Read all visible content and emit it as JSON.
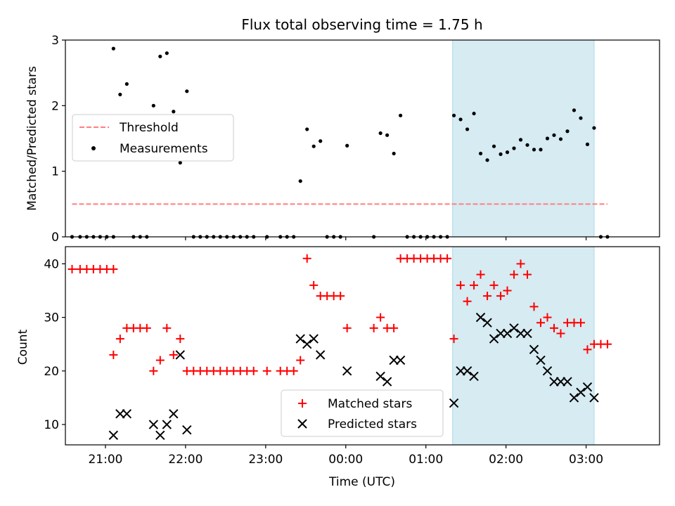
{
  "title": "Flux total observing time = 1.75 h",
  "xlabel": "Time (UTC)",
  "x_tick_labels": [
    "21:00",
    "22:00",
    "23:00",
    "00:00",
    "01:00",
    "02:00",
    "03:00"
  ],
  "highlight_color": "#add8e6",
  "chart_data": [
    {
      "type": "scatter",
      "panel": "top",
      "ylabel": "Matched/Predicted stars",
      "ylim": [
        0,
        3
      ],
      "yticks": [
        0,
        1,
        2,
        3
      ],
      "xlim": [
        "20:30",
        "03:55"
      ],
      "shaded_region": [
        "01:20",
        "03:06"
      ],
      "legend_position": "center-left",
      "series": [
        {
          "name": "Threshold",
          "kind": "line",
          "style": "dashed",
          "color": "#ff7f7f",
          "points": [
            [
              "20:35",
              0.5
            ],
            [
              "03:16",
              0.5
            ]
          ]
        },
        {
          "name": "Measurements",
          "kind": "points",
          "color": "#000000",
          "points": [
            [
              "20:35",
              0
            ],
            [
              "20:41",
              0
            ],
            [
              "20:46",
              0
            ],
            [
              "20:51",
              0
            ],
            [
              "20:56",
              0
            ],
            [
              "21:01",
              0
            ],
            [
              "21:06",
              0
            ],
            [
              "21:06",
              2.87
            ],
            [
              "21:11",
              2.17
            ],
            [
              "21:16",
              2.33
            ],
            [
              "21:21",
              0
            ],
            [
              "21:26",
              0
            ],
            [
              "21:31",
              0
            ],
            [
              "21:36",
              2.0
            ],
            [
              "21:41",
              2.75
            ],
            [
              "21:46",
              2.8
            ],
            [
              "21:51",
              1.91
            ],
            [
              "21:56",
              1.13
            ],
            [
              "22:01",
              2.22
            ],
            [
              "22:06",
              0
            ],
            [
              "22:11",
              0
            ],
            [
              "22:16",
              0
            ],
            [
              "22:21",
              0
            ],
            [
              "22:26",
              0
            ],
            [
              "22:31",
              0
            ],
            [
              "22:36",
              0
            ],
            [
              "22:41",
              0
            ],
            [
              "22:46",
              0
            ],
            [
              "22:51",
              0
            ],
            [
              "23:01",
              0
            ],
            [
              "23:11",
              0
            ],
            [
              "23:16",
              0
            ],
            [
              "23:21",
              0
            ],
            [
              "23:26",
              0.85
            ],
            [
              "23:31",
              1.64
            ],
            [
              "23:36",
              1.38
            ],
            [
              "23:41",
              1.46
            ],
            [
              "23:46",
              0
            ],
            [
              "23:51",
              0
            ],
            [
              "23:56",
              0
            ],
            [
              "24:01",
              1.39
            ],
            [
              "24:21",
              0
            ],
            [
              "24:26",
              1.58
            ],
            [
              "24:31",
              1.55
            ],
            [
              "24:36",
              1.27
            ],
            [
              "24:41",
              1.85
            ],
            [
              "24:46",
              0
            ],
            [
              "24:51",
              0
            ],
            [
              "24:56",
              0
            ],
            [
              "25:01",
              0
            ],
            [
              "25:06",
              0
            ],
            [
              "25:11",
              0
            ],
            [
              "25:16",
              0
            ],
            [
              "25:21",
              1.85
            ],
            [
              "25:26",
              1.79
            ],
            [
              "25:31",
              1.64
            ],
            [
              "25:36",
              1.88
            ],
            [
              "25:41",
              1.27
            ],
            [
              "25:46",
              1.17
            ],
            [
              "25:51",
              1.38
            ],
            [
              "25:56",
              1.26
            ],
            [
              "26:01",
              1.29
            ],
            [
              "26:06",
              1.35
            ],
            [
              "26:11",
              1.48
            ],
            [
              "26:16",
              1.4
            ],
            [
              "26:21",
              1.33
            ],
            [
              "26:26",
              1.33
            ],
            [
              "26:31",
              1.5
            ],
            [
              "26:36",
              1.55
            ],
            [
              "26:41",
              1.49
            ],
            [
              "26:46",
              1.61
            ],
            [
              "26:51",
              1.93
            ],
            [
              "26:56",
              1.81
            ],
            [
              "27:01",
              1.41
            ],
            [
              "27:06",
              1.66
            ],
            [
              "27:11",
              0
            ],
            [
              "27:16",
              0
            ]
          ]
        }
      ]
    },
    {
      "type": "scatter",
      "panel": "bottom",
      "ylabel": "Count",
      "ylim": [
        6.2,
        43.2
      ],
      "yticks": [
        10,
        20,
        30,
        40
      ],
      "xlim": [
        "20:30",
        "03:55"
      ],
      "shaded_region": [
        "01:20",
        "03:06"
      ],
      "legend_position": "lower-center",
      "series": [
        {
          "name": "Matched stars",
          "marker": "plus",
          "color": "#ff0000",
          "points": [
            [
              "20:35",
              39
            ],
            [
              "20:41",
              39
            ],
            [
              "20:46",
              39
            ],
            [
              "20:51",
              39
            ],
            [
              "20:56",
              39
            ],
            [
              "21:01",
              39
            ],
            [
              "21:06",
              39
            ],
            [
              "21:06",
              23
            ],
            [
              "21:11",
              26
            ],
            [
              "21:16",
              28
            ],
            [
              "21:21",
              28
            ],
            [
              "21:26",
              28
            ],
            [
              "21:31",
              28
            ],
            [
              "21:36",
              20
            ],
            [
              "21:41",
              22
            ],
            [
              "21:46",
              28
            ],
            [
              "21:51",
              23
            ],
            [
              "21:56",
              26
            ],
            [
              "22:01",
              20
            ],
            [
              "22:06",
              20
            ],
            [
              "22:11",
              20
            ],
            [
              "22:16",
              20
            ],
            [
              "22:21",
              20
            ],
            [
              "22:26",
              20
            ],
            [
              "22:31",
              20
            ],
            [
              "22:36",
              20
            ],
            [
              "22:41",
              20
            ],
            [
              "22:46",
              20
            ],
            [
              "22:51",
              20
            ],
            [
              "23:01",
              20
            ],
            [
              "23:11",
              20
            ],
            [
              "23:16",
              20
            ],
            [
              "23:21",
              20
            ],
            [
              "23:26",
              22
            ],
            [
              "23:31",
              41
            ],
            [
              "23:36",
              36
            ],
            [
              "23:41",
              34
            ],
            [
              "23:46",
              34
            ],
            [
              "23:51",
              34
            ],
            [
              "23:56",
              34
            ],
            [
              "24:01",
              28
            ],
            [
              "24:21",
              28
            ],
            [
              "24:26",
              30
            ],
            [
              "24:31",
              28
            ],
            [
              "24:36",
              28
            ],
            [
              "24:41",
              41
            ],
            [
              "24:46",
              41
            ],
            [
              "24:51",
              41
            ],
            [
              "24:56",
              41
            ],
            [
              "25:01",
              41
            ],
            [
              "25:06",
              41
            ],
            [
              "25:11",
              41
            ],
            [
              "25:16",
              41
            ],
            [
              "25:21",
              26
            ],
            [
              "25:26",
              36
            ],
            [
              "25:31",
              33
            ],
            [
              "25:36",
              36
            ],
            [
              "25:41",
              38
            ],
            [
              "25:46",
              34
            ],
            [
              "25:51",
              36
            ],
            [
              "25:56",
              34
            ],
            [
              "26:01",
              35
            ],
            [
              "26:06",
              38
            ],
            [
              "26:11",
              40
            ],
            [
              "26:16",
              38
            ],
            [
              "26:21",
              32
            ],
            [
              "26:26",
              29
            ],
            [
              "26:31",
              30
            ],
            [
              "26:36",
              28
            ],
            [
              "26:41",
              27
            ],
            [
              "26:46",
              29
            ],
            [
              "26:51",
              29
            ],
            [
              "26:56",
              29
            ],
            [
              "27:01",
              24
            ],
            [
              "27:06",
              25
            ],
            [
              "27:11",
              25
            ],
            [
              "27:16",
              25
            ]
          ]
        },
        {
          "name": "Predicted stars",
          "marker": "x",
          "color": "#000000",
          "points": [
            [
              "21:06",
              8
            ],
            [
              "21:11",
              12
            ],
            [
              "21:16",
              12
            ],
            [
              "21:36",
              10
            ],
            [
              "21:41",
              8
            ],
            [
              "21:46",
              10
            ],
            [
              "21:51",
              12
            ],
            [
              "21:56",
              23
            ],
            [
              "22:01",
              9
            ],
            [
              "23:26",
              26
            ],
            [
              "23:31",
              25
            ],
            [
              "23:36",
              26
            ],
            [
              "23:41",
              23
            ],
            [
              "24:01",
              20
            ],
            [
              "24:26",
              19
            ],
            [
              "24:31",
              18
            ],
            [
              "24:36",
              22
            ],
            [
              "24:41",
              22
            ],
            [
              "25:21",
              14
            ],
            [
              "25:26",
              20
            ],
            [
              "25:31",
              20
            ],
            [
              "25:36",
              19
            ],
            [
              "25:41",
              30
            ],
            [
              "25:46",
              29
            ],
            [
              "25:51",
              26
            ],
            [
              "25:56",
              27
            ],
            [
              "26:01",
              27
            ],
            [
              "26:06",
              28
            ],
            [
              "26:11",
              27
            ],
            [
              "26:16",
              27
            ],
            [
              "26:21",
              24
            ],
            [
              "26:26",
              22
            ],
            [
              "26:31",
              20
            ],
            [
              "26:36",
              18
            ],
            [
              "26:41",
              18
            ],
            [
              "26:46",
              18
            ],
            [
              "26:51",
              15
            ],
            [
              "26:56",
              16
            ],
            [
              "27:01",
              17
            ],
            [
              "27:06",
              15
            ]
          ]
        }
      ]
    }
  ]
}
